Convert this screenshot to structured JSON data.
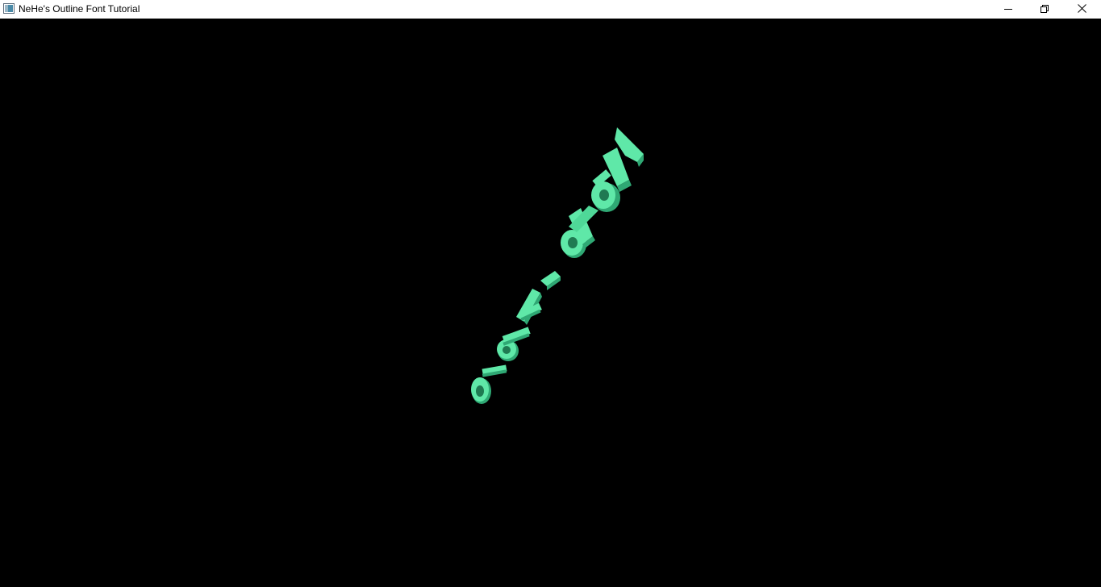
{
  "window": {
    "title": "NeHe's Outline Font Tutorial",
    "app_icon": "window-app-icon",
    "controls": {
      "minimize_icon": "minimize-icon",
      "maximize_icon": "restore-icon",
      "close_icon": "close-icon"
    }
  },
  "scene": {
    "background_color": "#000000",
    "text_color": "#5fe8a8",
    "text_shadow_color": "#2fa874",
    "rendered_text": "3D extruded outline font text (rotated, partially illegible)"
  }
}
